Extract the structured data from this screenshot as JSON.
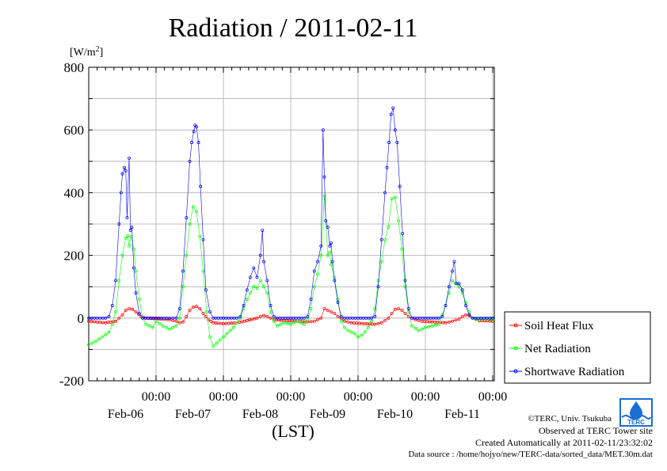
{
  "chart_data": {
    "type": "line",
    "title": "Radiation / 2011-02-11",
    "ylabel": "[W/m2]",
    "xlabel": "(LST)",
    "ylim": [
      -200,
      800
    ],
    "yticks": [
      -200,
      0,
      200,
      400,
      600,
      800
    ],
    "xlim_days": [
      0,
      6
    ],
    "x_tick_top": "00:00",
    "x_ticks": [
      "Feb-06",
      "Feb-07",
      "Feb-08",
      "Feb-09",
      "Feb-10",
      "Feb-11"
    ],
    "grid": true,
    "legend_position": "right",
    "series": [
      {
        "name": "Soil Heat Flux",
        "color": "#ff0000",
        "points": [
          [
            0.0,
            -10
          ],
          [
            0.25,
            -15
          ],
          [
            0.4,
            -10
          ],
          [
            0.5,
            10
          ],
          [
            0.55,
            25
          ],
          [
            0.6,
            30
          ],
          [
            0.65,
            28
          ],
          [
            0.7,
            20
          ],
          [
            0.78,
            5
          ],
          [
            0.85,
            0
          ],
          [
            1.0,
            -2
          ],
          [
            1.2,
            -5
          ],
          [
            1.3,
            -10
          ],
          [
            1.35,
            -15
          ],
          [
            1.4,
            -12
          ],
          [
            1.45,
            5
          ],
          [
            1.5,
            25
          ],
          [
            1.55,
            35
          ],
          [
            1.6,
            37
          ],
          [
            1.65,
            30
          ],
          [
            1.7,
            15
          ],
          [
            1.78,
            -5
          ],
          [
            1.85,
            -15
          ],
          [
            2.0,
            -18
          ],
          [
            2.2,
            -15
          ],
          [
            2.35,
            -8
          ],
          [
            2.5,
            0
          ],
          [
            2.55,
            5
          ],
          [
            2.6,
            8
          ],
          [
            2.65,
            5
          ],
          [
            2.75,
            -5
          ],
          [
            2.9,
            -8
          ],
          [
            3.1,
            -10
          ],
          [
            3.25,
            -12
          ],
          [
            3.35,
            -10
          ],
          [
            3.45,
            0
          ],
          [
            3.5,
            30
          ],
          [
            3.55,
            25
          ],
          [
            3.6,
            20
          ],
          [
            3.65,
            15
          ],
          [
            3.7,
            5
          ],
          [
            3.8,
            -10
          ],
          [
            3.9,
            -15
          ],
          [
            4.1,
            -18
          ],
          [
            4.25,
            -20
          ],
          [
            4.35,
            -15
          ],
          [
            4.45,
            0
          ],
          [
            4.5,
            15
          ],
          [
            4.55,
            28
          ],
          [
            4.6,
            30
          ],
          [
            4.65,
            25
          ],
          [
            4.75,
            5
          ],
          [
            4.85,
            -5
          ],
          [
            4.95,
            -10
          ],
          [
            5.1,
            -12
          ],
          [
            5.3,
            -15
          ],
          [
            5.4,
            -10
          ],
          [
            5.5,
            -3
          ],
          [
            5.55,
            5
          ],
          [
            5.6,
            10
          ],
          [
            5.65,
            8
          ],
          [
            5.7,
            0
          ],
          [
            5.8,
            -8
          ],
          [
            6.0,
            -10
          ]
        ]
      },
      {
        "name": "Net Radiation",
        "color": "#00ff00",
        "points": [
          [
            0.0,
            -85
          ],
          [
            0.1,
            -75
          ],
          [
            0.2,
            -60
          ],
          [
            0.3,
            -45
          ],
          [
            0.35,
            -20
          ],
          [
            0.4,
            20
          ],
          [
            0.45,
            120
          ],
          [
            0.5,
            200
          ],
          [
            0.55,
            255
          ],
          [
            0.58,
            262
          ],
          [
            0.6,
            230
          ],
          [
            0.63,
            260
          ],
          [
            0.67,
            220
          ],
          [
            0.7,
            150
          ],
          [
            0.75,
            60
          ],
          [
            0.8,
            0
          ],
          [
            0.85,
            -20
          ],
          [
            0.95,
            -30
          ],
          [
            1.0,
            -10
          ],
          [
            1.1,
            -25
          ],
          [
            1.2,
            -35
          ],
          [
            1.3,
            -25
          ],
          [
            1.35,
            0
          ],
          [
            1.4,
            100
          ],
          [
            1.45,
            200
          ],
          [
            1.5,
            300
          ],
          [
            1.55,
            355
          ],
          [
            1.6,
            340
          ],
          [
            1.65,
            260
          ],
          [
            1.7,
            150
          ],
          [
            1.75,
            20
          ],
          [
            1.8,
            -60
          ],
          [
            1.85,
            -90
          ],
          [
            1.95,
            -70
          ],
          [
            2.05,
            -50
          ],
          [
            2.15,
            -30
          ],
          [
            2.25,
            0
          ],
          [
            2.3,
            30
          ],
          [
            2.35,
            60
          ],
          [
            2.4,
            80
          ],
          [
            2.45,
            100
          ],
          [
            2.5,
            95
          ],
          [
            2.55,
            120
          ],
          [
            2.6,
            100
          ],
          [
            2.65,
            80
          ],
          [
            2.7,
            20
          ],
          [
            2.75,
            -10
          ],
          [
            2.8,
            -25
          ],
          [
            2.9,
            -15
          ],
          [
            3.0,
            -20
          ],
          [
            3.1,
            -10
          ],
          [
            3.2,
            -20
          ],
          [
            3.25,
            -5
          ],
          [
            3.3,
            30
          ],
          [
            3.35,
            100
          ],
          [
            3.4,
            140
          ],
          [
            3.45,
            200
          ],
          [
            3.5,
            390
          ],
          [
            3.55,
            200
          ],
          [
            3.58,
            210
          ],
          [
            3.6,
            170
          ],
          [
            3.65,
            130
          ],
          [
            3.7,
            60
          ],
          [
            3.75,
            -10
          ],
          [
            3.8,
            -30
          ],
          [
            3.85,
            -40
          ],
          [
            3.9,
            -45
          ],
          [
            3.95,
            -50
          ],
          [
            4.0,
            -60
          ],
          [
            4.05,
            -55
          ],
          [
            4.1,
            -45
          ],
          [
            4.15,
            -30
          ],
          [
            4.2,
            -10
          ],
          [
            4.25,
            30
          ],
          [
            4.3,
            120
          ],
          [
            4.35,
            180
          ],
          [
            4.4,
            250
          ],
          [
            4.45,
            290
          ],
          [
            4.5,
            380
          ],
          [
            4.55,
            385
          ],
          [
            4.6,
            310
          ],
          [
            4.65,
            220
          ],
          [
            4.7,
            100
          ],
          [
            4.75,
            20
          ],
          [
            4.8,
            -25
          ],
          [
            4.9,
            -40
          ],
          [
            5.0,
            -30
          ],
          [
            5.1,
            -25
          ],
          [
            5.2,
            -20
          ],
          [
            5.25,
            10
          ],
          [
            5.3,
            40
          ],
          [
            5.35,
            80
          ],
          [
            5.4,
            120
          ],
          [
            5.45,
            110
          ],
          [
            5.5,
            100
          ],
          [
            5.55,
            80
          ],
          [
            5.6,
            50
          ],
          [
            5.65,
            20
          ],
          [
            5.7,
            0
          ],
          [
            5.8,
            -5
          ],
          [
            5.9,
            -3
          ],
          [
            6.0,
            -5
          ]
        ]
      },
      {
        "name": "Shortwave Radiation",
        "color": "#0000ff",
        "points": [
          [
            0.0,
            0
          ],
          [
            0.25,
            0
          ],
          [
            0.3,
            5
          ],
          [
            0.35,
            40
          ],
          [
            0.4,
            120
          ],
          [
            0.45,
            300
          ],
          [
            0.48,
            400
          ],
          [
            0.5,
            460
          ],
          [
            0.53,
            480
          ],
          [
            0.55,
            470
          ],
          [
            0.57,
            320
          ],
          [
            0.6,
            510
          ],
          [
            0.62,
            280
          ],
          [
            0.64,
            290
          ],
          [
            0.67,
            160
          ],
          [
            0.7,
            80
          ],
          [
            0.75,
            15
          ],
          [
            0.8,
            0
          ],
          [
            1.0,
            0
          ],
          [
            1.2,
            0
          ],
          [
            1.3,
            0
          ],
          [
            1.35,
            30
          ],
          [
            1.4,
            150
          ],
          [
            1.45,
            320
          ],
          [
            1.5,
            500
          ],
          [
            1.53,
            560
          ],
          [
            1.56,
            595
          ],
          [
            1.58,
            615
          ],
          [
            1.6,
            610
          ],
          [
            1.63,
            560
          ],
          [
            1.66,
            420
          ],
          [
            1.7,
            250
          ],
          [
            1.74,
            90
          ],
          [
            1.8,
            20
          ],
          [
            1.85,
            0
          ],
          [
            2.0,
            0
          ],
          [
            2.2,
            0
          ],
          [
            2.25,
            5
          ],
          [
            2.3,
            40
          ],
          [
            2.35,
            90
          ],
          [
            2.4,
            130
          ],
          [
            2.45,
            160
          ],
          [
            2.5,
            130
          ],
          [
            2.55,
            200
          ],
          [
            2.58,
            280
          ],
          [
            2.6,
            180
          ],
          [
            2.65,
            120
          ],
          [
            2.7,
            40
          ],
          [
            2.75,
            5
          ],
          [
            2.8,
            0
          ],
          [
            3.0,
            0
          ],
          [
            3.2,
            0
          ],
          [
            3.25,
            5
          ],
          [
            3.3,
            60
          ],
          [
            3.35,
            150
          ],
          [
            3.4,
            180
          ],
          [
            3.45,
            230
          ],
          [
            3.48,
            600
          ],
          [
            3.5,
            450
          ],
          [
            3.52,
            310
          ],
          [
            3.55,
            290
          ],
          [
            3.58,
            230
          ],
          [
            3.6,
            240
          ],
          [
            3.62,
            180
          ],
          [
            3.65,
            120
          ],
          [
            3.7,
            50
          ],
          [
            3.75,
            5
          ],
          [
            3.8,
            0
          ],
          [
            4.0,
            0
          ],
          [
            4.2,
            0
          ],
          [
            4.25,
            5
          ],
          [
            4.3,
            100
          ],
          [
            4.35,
            250
          ],
          [
            4.4,
            400
          ],
          [
            4.43,
            480
          ],
          [
            4.46,
            560
          ],
          [
            4.49,
            650
          ],
          [
            4.52,
            670
          ],
          [
            4.55,
            600
          ],
          [
            4.58,
            560
          ],
          [
            4.62,
            420
          ],
          [
            4.66,
            270
          ],
          [
            4.7,
            120
          ],
          [
            4.75,
            30
          ],
          [
            4.8,
            0
          ],
          [
            5.0,
            0
          ],
          [
            5.2,
            0
          ],
          [
            5.25,
            5
          ],
          [
            5.3,
            40
          ],
          [
            5.35,
            100
          ],
          [
            5.4,
            150
          ],
          [
            5.43,
            180
          ],
          [
            5.46,
            110
          ],
          [
            5.5,
            110
          ],
          [
            5.55,
            90
          ],
          [
            5.6,
            40
          ],
          [
            5.65,
            10
          ],
          [
            5.7,
            0
          ],
          [
            6.0,
            0
          ]
        ]
      }
    ]
  },
  "footer": {
    "copyright": "©TERC, Univ. Tsukuba",
    "observed": "Observed at TERC Tower site",
    "created": "Created Automatically at 2011-02-11/23:32:02",
    "source": "Data source : /home/hojyo/new/TERC-data/sorted_data/MET.30m.dat"
  },
  "logo": {
    "text": "TERC",
    "color": "#1a6fd0"
  }
}
